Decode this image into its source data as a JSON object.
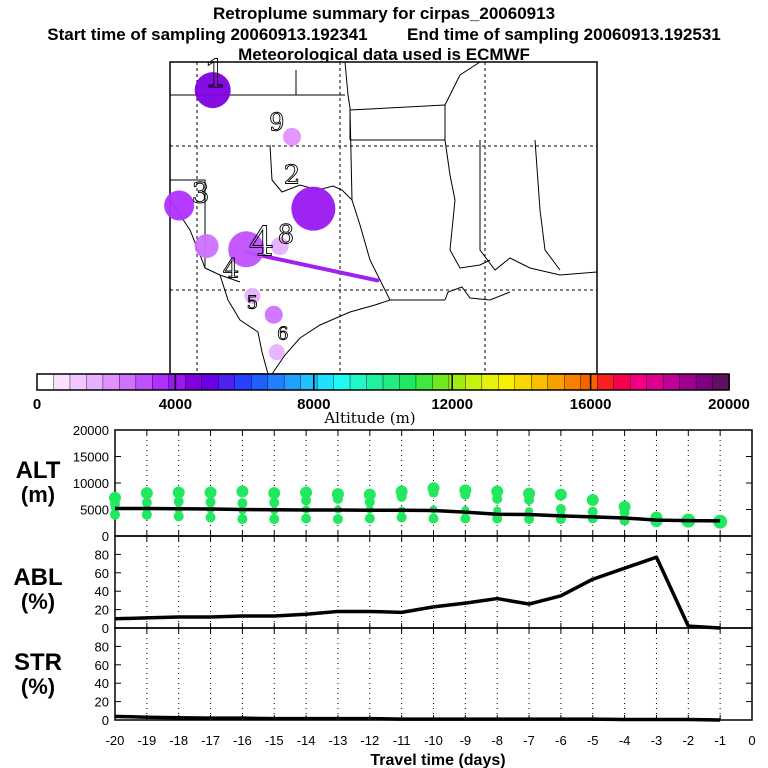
{
  "header": {
    "title": "Retroplume summary for cirpas_20060913",
    "start_label": "Start time of sampling 20060913.192341",
    "end_label": "End time of sampling 20060913.192531",
    "met_label": "Meteorological data used is ECMWF"
  },
  "colors": {
    "alt_marker": "#22e860",
    "plume": "#a020f0",
    "line": "#000000"
  },
  "colorbar": {
    "title": "Altitude (m)",
    "tick_labels": [
      "0",
      "4000",
      "8000",
      "12000",
      "16000",
      "20000"
    ],
    "range": [
      0,
      20000
    ],
    "colors": [
      "#ffffff",
      "#f8e0ff",
      "#f0c8ff",
      "#e8b0ff",
      "#e090ff",
      "#d070ff",
      "#c050ff",
      "#b030ff",
      "#9a18f0",
      "#8000e0",
      "#6a00e8",
      "#5020f0",
      "#2a40ff",
      "#2060ff",
      "#2080ff",
      "#20a0ff",
      "#20c0ff",
      "#20e0ff",
      "#20f8f0",
      "#20f8c8",
      "#20f0a0",
      "#20ec80",
      "#20e860",
      "#40e840",
      "#70e820",
      "#a0ec10",
      "#c8f010",
      "#e8f010",
      "#f8f000",
      "#f8d800",
      "#f8c000",
      "#f8a000",
      "#f88000",
      "#f86000",
      "#f82020",
      "#f80050",
      "#f00080",
      "#e00090",
      "#c00098",
      "#a00090",
      "#800080",
      "#601060"
    ]
  },
  "map": {
    "labels": [
      {
        "text": "1",
        "x": -102.5,
        "y": 36.7,
        "size": 38
      },
      {
        "text": "2",
        "x": -100.0,
        "y": 33.6,
        "size": 26
      },
      {
        "text": "3",
        "x": -103.0,
        "y": 33.0,
        "size": 28
      },
      {
        "text": "4",
        "x": -101.0,
        "y": 31.3,
        "size": 40
      },
      {
        "text": "4",
        "x": -102.0,
        "y": 30.6,
        "size": 26
      },
      {
        "text": "8",
        "x": -100.2,
        "y": 31.7,
        "size": 26
      },
      {
        "text": "9",
        "x": -100.5,
        "y": 35.3,
        "size": 24
      },
      {
        "text": "5",
        "x": -101.3,
        "y": 29.6,
        "size": 18
      },
      {
        "text": "6",
        "x": -100.3,
        "y": 28.6,
        "size": 18
      }
    ],
    "plume_points": [
      {
        "lon": -102.6,
        "lat": 36.6,
        "r": 18,
        "alt": 4300
      },
      {
        "lon": -100.0,
        "lat": 35.1,
        "r": 9,
        "alt": 2200
      },
      {
        "lon": -99.3,
        "lat": 32.8,
        "r": 22,
        "alt": 4100
      },
      {
        "lon": -102.8,
        "lat": 31.6,
        "r": 12,
        "alt": 2500
      },
      {
        "lon": -101.5,
        "lat": 31.5,
        "r": 18,
        "alt": 3200
      },
      {
        "lon": -100.4,
        "lat": 31.6,
        "r": 9,
        "alt": 1900
      },
      {
        "lon": -101.3,
        "lat": 30.0,
        "r": 8,
        "alt": 1500
      },
      {
        "lon": -100.6,
        "lat": 29.4,
        "r": 9,
        "alt": 2600
      },
      {
        "lon": -100.5,
        "lat": 28.2,
        "r": 8,
        "alt": 1500
      },
      {
        "lon": -103.7,
        "lat": 32.9,
        "r": 15,
        "alt": 3600
      }
    ],
    "plume_line": [
      [
        -101.5,
        31.4
      ],
      [
        -97.2,
        30.5
      ]
    ],
    "lon_range": [
      -104,
      -90
    ],
    "lat_range": [
      27.5,
      37.5
    ]
  },
  "panels": {
    "alt": {
      "label1": "ALT",
      "label2": "(m)",
      "yticks": [
        "0",
        "5000",
        "10000",
        "15000",
        "20000"
      ],
      "ylim": [
        0,
        20000
      ]
    },
    "abl": {
      "label1": "ABL",
      "label2": "(%)",
      "yticks": [
        "0",
        "20",
        "40",
        "60",
        "80"
      ],
      "ylim": [
        0,
        100
      ]
    },
    "str": {
      "label1": "STR",
      "label2": "(%)",
      "yticks": [
        "0",
        "20",
        "40",
        "60",
        "80"
      ],
      "ylim": [
        0,
        100
      ]
    }
  },
  "xaxis": {
    "title": "Travel time (days)",
    "ticks": [
      "-20",
      "-19",
      "-18",
      "-17",
      "-16",
      "-15",
      "-14",
      "-13",
      "-12",
      "-11",
      "-10",
      "-9",
      "-8",
      "-7",
      "-6",
      "-5",
      "-4",
      "-3",
      "-2",
      "-1",
      "0"
    ],
    "xlim": [
      -20,
      0
    ]
  },
  "chart_data": {
    "type": "line",
    "x": [
      -20,
      -19,
      -18,
      -17,
      -16,
      -15,
      -14,
      -13,
      -12,
      -11,
      -10,
      -9,
      -8,
      -7,
      -6,
      -5,
      -4,
      -3,
      -2,
      -1
    ],
    "series": [
      {
        "name": "ALT mean (m)",
        "values": [
          5200,
          5200,
          5150,
          5100,
          5000,
          4950,
          4900,
          4900,
          4850,
          4850,
          4800,
          4500,
          4100,
          4050,
          3800,
          3600,
          3400,
          3000,
          2900,
          2850
        ]
      },
      {
        "name": "ABL (%)",
        "values": [
          10,
          11,
          12,
          12,
          13,
          13,
          15,
          18,
          18,
          17,
          23,
          27,
          32,
          26,
          35,
          53,
          65,
          77,
          2,
          0
        ]
      },
      {
        "name": "STR (%)",
        "values": [
          4,
          3,
          2.5,
          2,
          2,
          1.5,
          1.5,
          1.5,
          1.5,
          1,
          1,
          1,
          1,
          1,
          1,
          1,
          0.5,
          0.5,
          0.5,
          0
        ]
      }
    ],
    "alt_scatter": [
      {
        "x": -20,
        "values": [
          7200,
          6000,
          5200,
          4000
        ]
      },
      {
        "x": -19,
        "values": [
          8100,
          6300,
          5000,
          4000
        ]
      },
      {
        "x": -18,
        "values": [
          8200,
          6500,
          5000,
          3700
        ]
      },
      {
        "x": -17,
        "values": [
          8200,
          6400,
          5000,
          3500
        ]
      },
      {
        "x": -16,
        "values": [
          8400,
          6200,
          4800,
          3200
        ]
      },
      {
        "x": -15,
        "values": [
          8100,
          6300,
          4800,
          3200
        ]
      },
      {
        "x": -14,
        "values": [
          8200,
          6700,
          5000,
          3300
        ]
      },
      {
        "x": -13,
        "values": [
          7900,
          7000,
          5000,
          3200
        ]
      },
      {
        "x": -12,
        "values": [
          7800,
          6400,
          5000,
          3300
        ]
      },
      {
        "x": -11,
        "values": [
          8400,
          7400,
          4800,
          3500
        ]
      },
      {
        "x": -10,
        "values": [
          9000,
          8200,
          5000,
          3300
        ]
      },
      {
        "x": -9,
        "values": [
          8600,
          7800,
          4900,
          3300
        ]
      },
      {
        "x": -8,
        "values": [
          8400,
          7000,
          4800,
          3300
        ]
      },
      {
        "x": -7,
        "values": [
          8000,
          6800,
          4700,
          3200
        ]
      },
      {
        "x": -6,
        "values": [
          7800,
          5100,
          4300,
          3200
        ]
      },
      {
        "x": -5,
        "values": [
          6800,
          4600,
          3700,
          3300
        ]
      },
      {
        "x": -4,
        "values": [
          5500,
          4400,
          3400,
          2900
        ]
      },
      {
        "x": -3,
        "values": [
          3500,
          3000,
          2800
        ]
      },
      {
        "x": -2,
        "values": [
          3100,
          2900
        ]
      },
      {
        "x": -1,
        "values": [
          2800,
          2700
        ]
      }
    ],
    "alt_marker_sizes": [
      3,
      4,
      5,
      6
    ],
    "xlabel": "Travel time (days)",
    "xlim": [
      -20,
      0
    ]
  }
}
